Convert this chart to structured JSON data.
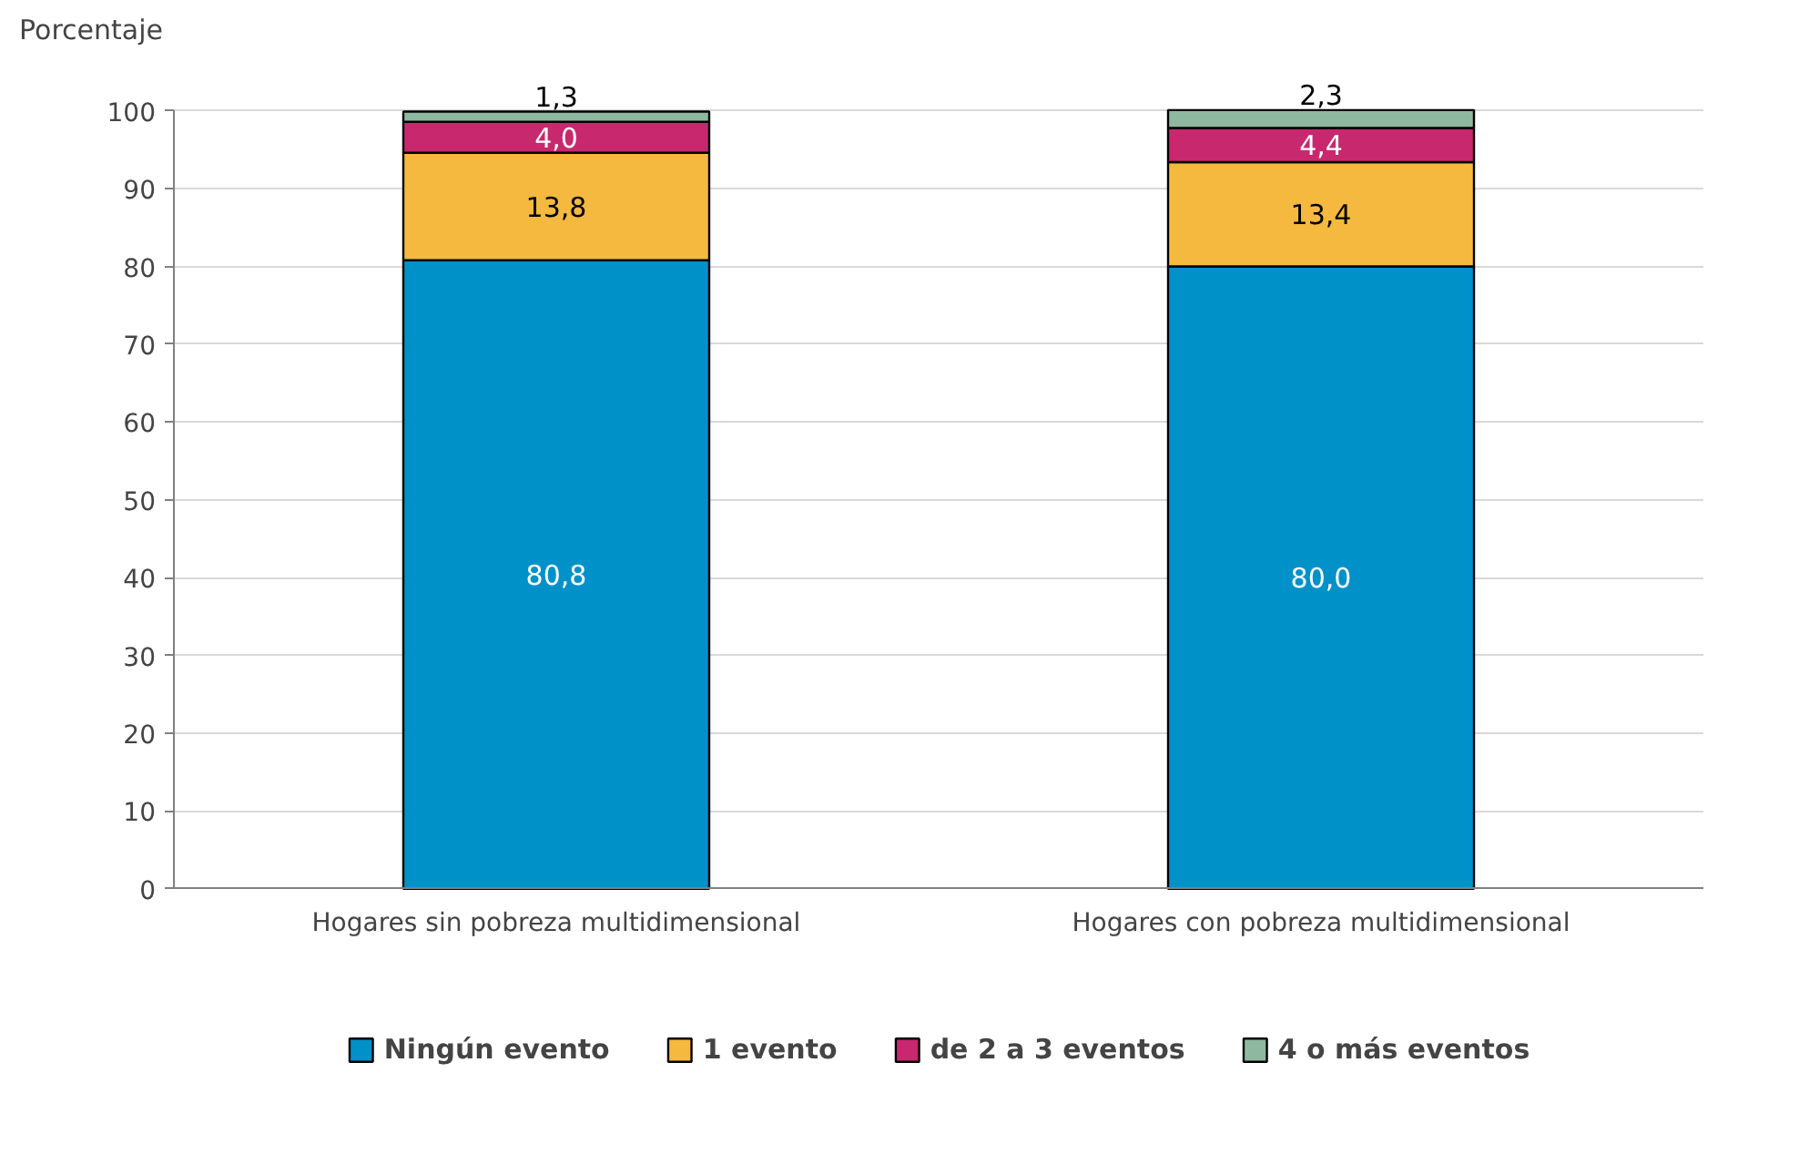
{
  "chart_data": {
    "type": "bar",
    "stacked": true,
    "ylabel": "Porcentaje",
    "categories": [
      "Hogares sin pobreza multidimensional",
      "Hogares con pobreza multidimensional"
    ],
    "series": [
      {
        "name": "Ningún evento",
        "color": "#0091c8",
        "values": [
          80.8,
          80.0
        ],
        "value_labels": [
          "80,8",
          "80,0"
        ]
      },
      {
        "name": "1 evento",
        "color": "#f4b93e",
        "values": [
          13.8,
          13.4
        ],
        "value_labels": [
          "13,8",
          "13,4"
        ]
      },
      {
        "name": "de 2 a 3 eventos",
        "color": "#c8286e",
        "values": [
          4.0,
          4.4
        ],
        "value_labels": [
          "4,0",
          "4,4"
        ]
      },
      {
        "name": "4 o más eventos",
        "color": "#8fb8a0",
        "values": [
          1.3,
          2.3
        ],
        "value_labels": [
          "1,3",
          "2,3"
        ]
      }
    ],
    "ylim": [
      0,
      100.1
    ],
    "yticks": [
      0,
      10,
      20,
      30,
      40,
      50,
      60,
      70,
      80,
      90,
      100
    ],
    "grid": "y",
    "legend": "bottom"
  }
}
